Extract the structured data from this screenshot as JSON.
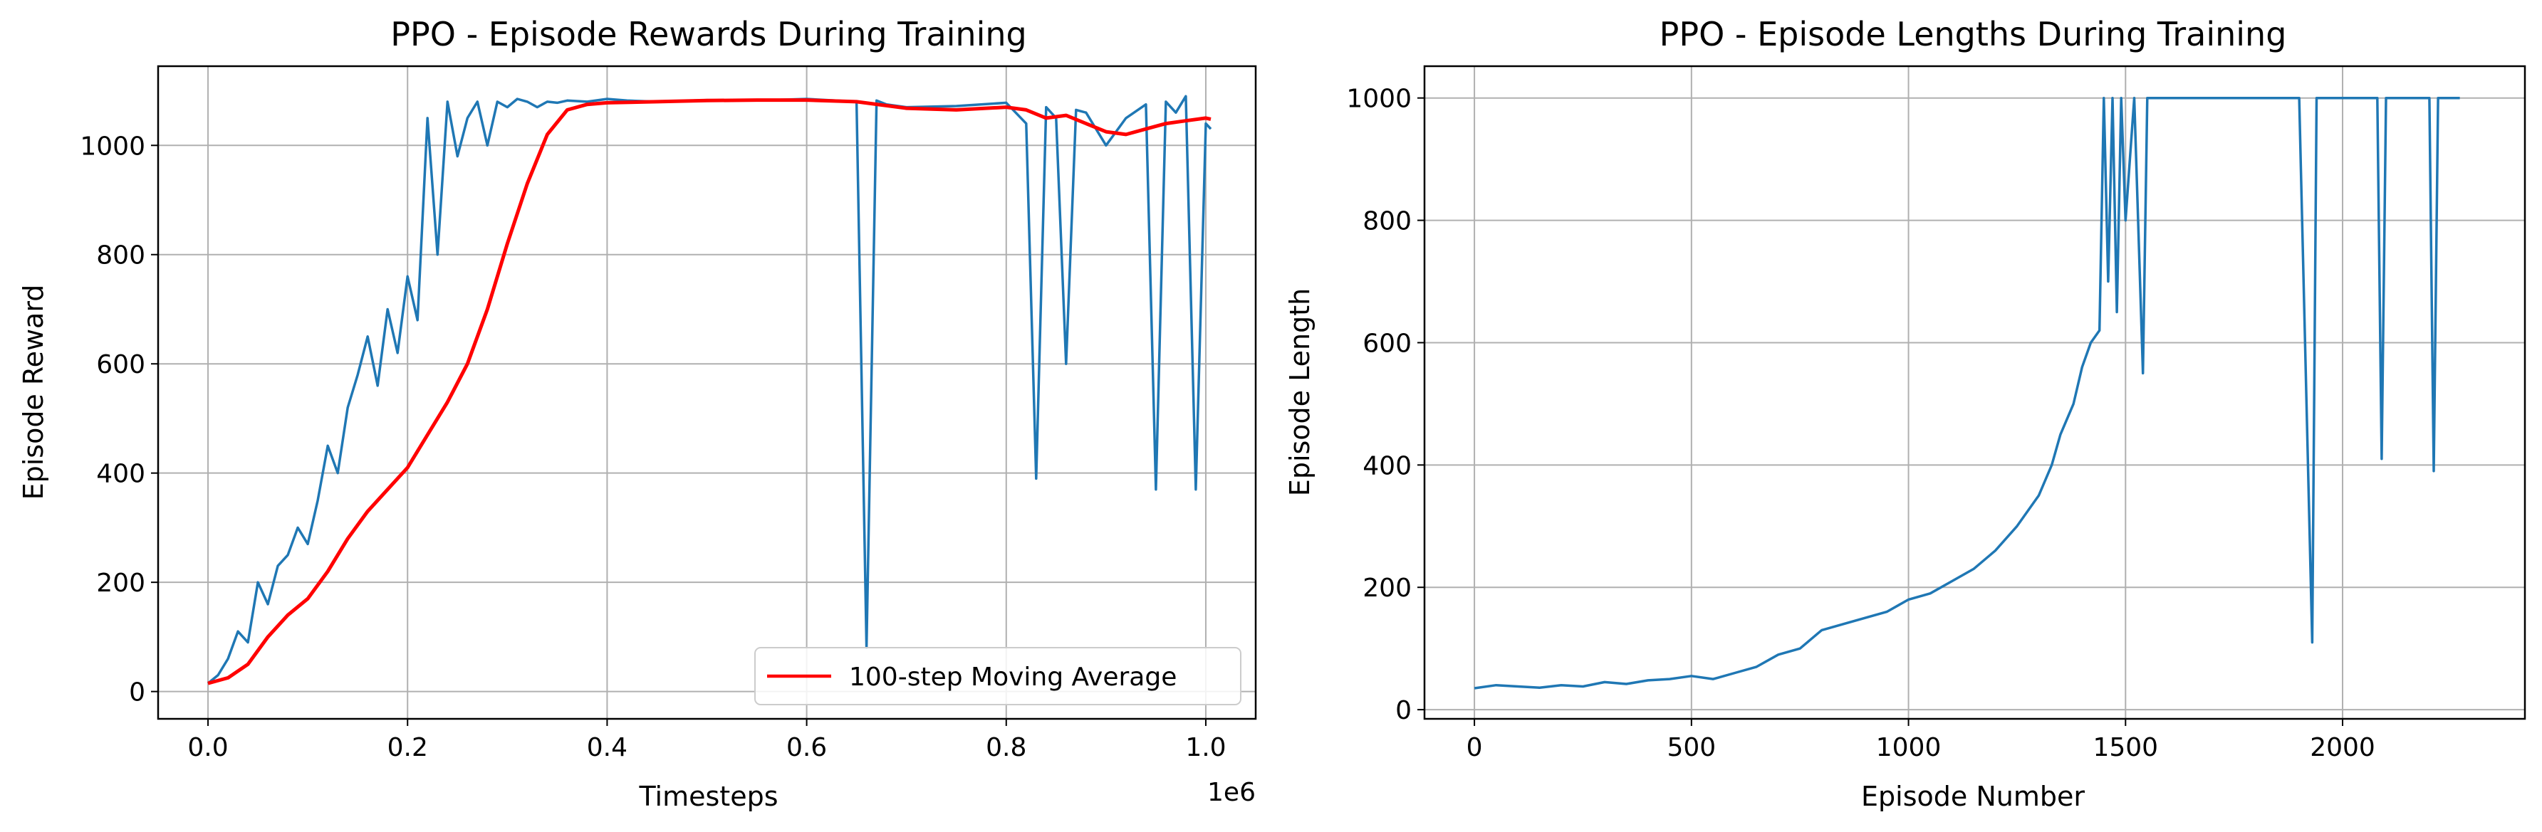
{
  "chart_data": [
    {
      "type": "line",
      "title": "PPO - Episode Rewards During Training",
      "xlabel": "Timesteps",
      "ylabel": "Episode Reward",
      "x_offset_text": "1e6",
      "xlim": [
        -0.05,
        1.05
      ],
      "ylim": [
        -50,
        1145
      ],
      "x_ticks": [
        0.0,
        0.2,
        0.4,
        0.6,
        0.8,
        1.0
      ],
      "x_tick_labels": [
        "0.0",
        "0.2",
        "0.4",
        "0.6",
        "0.8",
        "1.0"
      ],
      "y_ticks": [
        0,
        200,
        400,
        600,
        800,
        1000
      ],
      "y_tick_labels": [
        "0",
        "200",
        "400",
        "600",
        "800",
        "1000"
      ],
      "grid": true,
      "legend_position": "lower-right",
      "series": [
        {
          "color": "#1f77b4",
          "x": [
            0.0,
            0.01,
            0.02,
            0.03,
            0.04,
            0.05,
            0.06,
            0.07,
            0.08,
            0.09,
            0.1,
            0.11,
            0.12,
            0.13,
            0.14,
            0.15,
            0.16,
            0.17,
            0.18,
            0.19,
            0.2,
            0.21,
            0.22,
            0.23,
            0.24,
            0.25,
            0.26,
            0.27,
            0.28,
            0.29,
            0.3,
            0.31,
            0.32,
            0.33,
            0.34,
            0.35,
            0.36,
            0.38,
            0.4,
            0.42,
            0.45,
            0.5,
            0.55,
            0.6,
            0.65,
            0.66,
            0.67,
            0.68,
            0.7,
            0.75,
            0.8,
            0.82,
            0.83,
            0.84,
            0.85,
            0.86,
            0.87,
            0.88,
            0.9,
            0.92,
            0.94,
            0.95,
            0.96,
            0.97,
            0.98,
            0.99,
            1.0,
            1.005
          ],
          "values": [
            15,
            30,
            60,
            110,
            90,
            200,
            160,
            230,
            250,
            300,
            270,
            350,
            450,
            400,
            520,
            580,
            650,
            560,
            700,
            620,
            760,
            680,
            1050,
            800,
            1080,
            980,
            1050,
            1080,
            1000,
            1080,
            1070,
            1085,
            1080,
            1070,
            1080,
            1078,
            1082,
            1080,
            1085,
            1082,
            1080,
            1083,
            1082,
            1085,
            1080,
            80,
            1082,
            1075,
            1070,
            1072,
            1078,
            1040,
            390,
            1070,
            1050,
            600,
            1065,
            1060,
            1000,
            1050,
            1075,
            370,
            1080,
            1060,
            1090,
            370,
            1040,
            1030
          ]
        },
        {
          "name": "100-step Moving Average",
          "color": "#ff0000",
          "x": [
            0.0,
            0.02,
            0.04,
            0.06,
            0.08,
            0.1,
            0.12,
            0.14,
            0.16,
            0.18,
            0.2,
            0.22,
            0.24,
            0.26,
            0.28,
            0.3,
            0.32,
            0.34,
            0.36,
            0.38,
            0.4,
            0.45,
            0.5,
            0.55,
            0.6,
            0.65,
            0.7,
            0.75,
            0.8,
            0.82,
            0.84,
            0.86,
            0.88,
            0.9,
            0.92,
            0.94,
            0.96,
            0.98,
            1.0,
            1.005
          ],
          "values": [
            15,
            25,
            50,
            100,
            140,
            170,
            220,
            280,
            330,
            370,
            410,
            470,
            530,
            600,
            700,
            820,
            930,
            1020,
            1065,
            1075,
            1078,
            1080,
            1082,
            1083,
            1083,
            1080,
            1068,
            1065,
            1070,
            1065,
            1050,
            1055,
            1040,
            1025,
            1020,
            1030,
            1040,
            1045,
            1050,
            1048
          ]
        }
      ]
    },
    {
      "type": "line",
      "title": "PPO - Episode Lengths During Training",
      "xlabel": "Episode Number",
      "ylabel": "Episode Length",
      "xlim": [
        -115,
        2420
      ],
      "ylim": [
        -15,
        1052
      ],
      "x_ticks": [
        0,
        500,
        1000,
        1500,
        2000
      ],
      "x_tick_labels": [
        "0",
        "500",
        "1000",
        "1500",
        "2000"
      ],
      "y_ticks": [
        0,
        200,
        400,
        600,
        800,
        1000
      ],
      "y_tick_labels": [
        "0",
        "200",
        "400",
        "600",
        "800",
        "1000"
      ],
      "grid": true,
      "series": [
        {
          "color": "#1f77b4",
          "x": [
            0,
            50,
            100,
            150,
            200,
            250,
            300,
            350,
            400,
            450,
            500,
            550,
            600,
            650,
            700,
            750,
            800,
            850,
            900,
            950,
            1000,
            1050,
            1100,
            1150,
            1200,
            1250,
            1300,
            1330,
            1350,
            1380,
            1400,
            1420,
            1440,
            1450,
            1460,
            1470,
            1480,
            1490,
            1500,
            1520,
            1540,
            1550,
            1600,
            1650,
            1700,
            1800,
            1900,
            1930,
            1940,
            1950,
            2000,
            2080,
            2090,
            2100,
            2150,
            2200,
            2210,
            2220,
            2260,
            2270
          ],
          "values": [
            35,
            40,
            38,
            36,
            40,
            38,
            45,
            42,
            48,
            50,
            55,
            50,
            60,
            70,
            90,
            100,
            130,
            140,
            150,
            160,
            180,
            190,
            210,
            230,
            260,
            300,
            350,
            400,
            450,
            500,
            560,
            600,
            620,
            1000,
            700,
            1000,
            650,
            1000,
            800,
            1000,
            550,
            1000,
            1000,
            1000,
            1000,
            1000,
            1000,
            110,
            1000,
            1000,
            1000,
            1000,
            410,
            1000,
            1000,
            1000,
            390,
            1000,
            1000,
            1000
          ]
        }
      ]
    }
  ]
}
